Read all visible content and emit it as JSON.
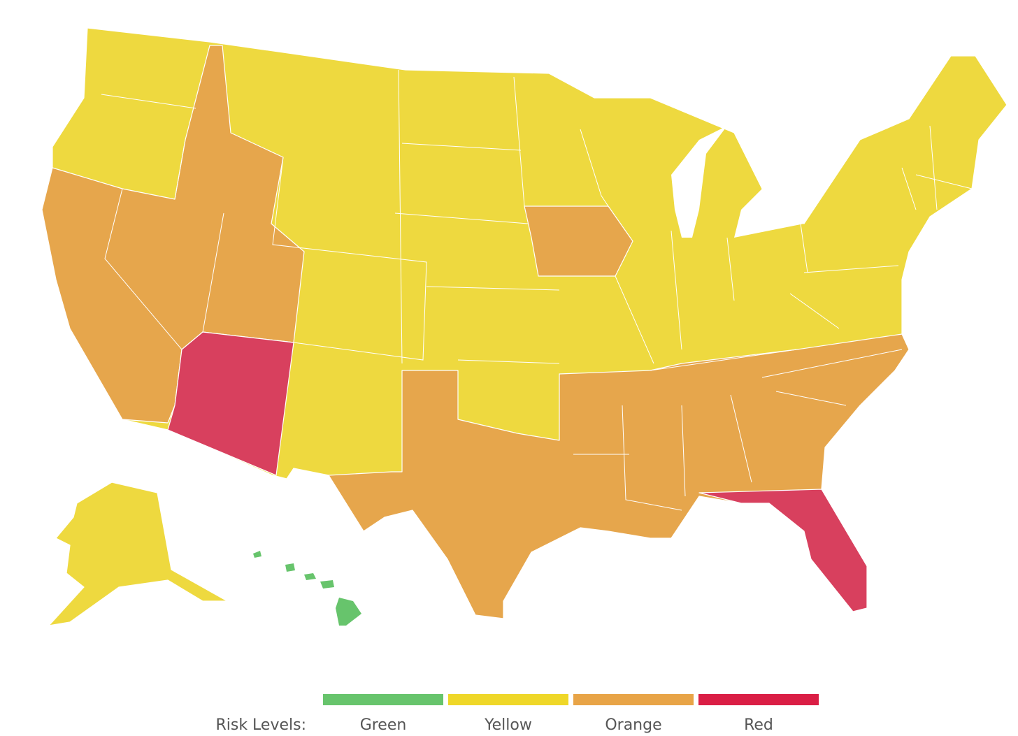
{
  "legend": {
    "title": "Risk Levels:",
    "items": [
      {
        "label": "Green",
        "color": "#67c46c"
      },
      {
        "label": "Yellow",
        "color": "#efd728"
      },
      {
        "label": "Orange",
        "color": "#e8a447"
      },
      {
        "label": "Red",
        "color": "#da1e45"
      }
    ]
  }
}
